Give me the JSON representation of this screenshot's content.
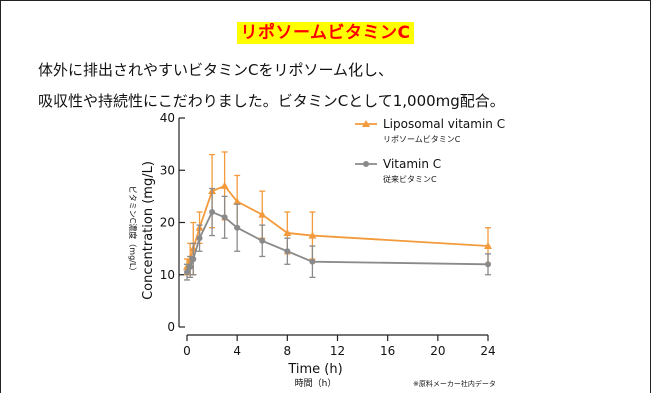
{
  "header": {
    "title": "リポソームビタミンC",
    "intro_line1": "体外に排出されやすいビタミンCをリポソーム化し、",
    "intro_line2": "吸収性や持続性にこだわりました。ビタミンCとして1,000mg配合。"
  },
  "footnote": "※原料メーカー社内データ",
  "chart_data": {
    "type": "line",
    "xlabel": "Time (h)",
    "xlabel_jp": "時間（h）",
    "ylabel": "Concentration (mg/L)",
    "ylabel_jp": "ビタミンC濃度（mg/L）",
    "xlim": [
      0,
      24
    ],
    "ylim": [
      0,
      40
    ],
    "x_ticks": [
      0,
      4,
      8,
      12,
      16,
      20,
      24
    ],
    "y_ticks": [
      0,
      10,
      20,
      30,
      40
    ],
    "grid": false,
    "legend_position": "top-right",
    "series": [
      {
        "name": "Liposomal vitamin C",
        "name_jp": "リポソームビタミンC",
        "color": "#f39a3c",
        "marker": "triangle",
        "x": [
          0,
          0.25,
          0.5,
          1,
          2,
          3,
          4,
          6,
          8,
          10,
          24
        ],
        "y": [
          11.5,
          13,
          15,
          19,
          26,
          27,
          24,
          21.5,
          18,
          17.5,
          15.5
        ],
        "err": [
          1.5,
          3,
          5,
          3,
          7,
          6.5,
          5,
          4.5,
          4,
          4.5,
          3.5
        ]
      },
      {
        "name": "Vitamin C",
        "name_jp": "従来ビタミンC",
        "color": "#8a8a8a",
        "marker": "circle",
        "x": [
          0,
          0.25,
          0.5,
          1,
          2,
          3,
          4,
          6,
          8,
          10,
          24
        ],
        "y": [
          10.5,
          11.5,
          13,
          17,
          22,
          21,
          19,
          16.5,
          14.5,
          12.5,
          12
        ],
        "err": [
          1.5,
          2,
          3,
          2.5,
          4.5,
          4,
          4.5,
          3,
          2.5,
          3,
          2
        ]
      }
    ]
  }
}
